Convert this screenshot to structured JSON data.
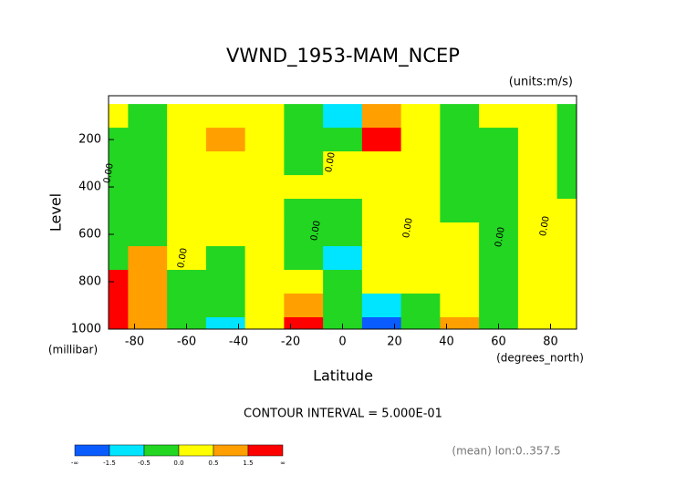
{
  "chart_data": {
    "type": "contour",
    "title": "VWND_1953-MAM_NCEP",
    "units": "(units:m/s)",
    "ylabel": "Level",
    "yunits": "(millibar)",
    "xlabel": "Latitude",
    "xunits": "(degrees_north)",
    "contour_interval": "CONTOUR INTERVAL = 5.000E-01",
    "note": "(mean) lon:0..357.5",
    "contour_labels": [
      "0.00",
      "0.00",
      "0.00",
      "0.00",
      "0.00",
      "0.00",
      "0.00"
    ],
    "x": [
      -90,
      -75,
      -60,
      -45,
      -30,
      -15,
      0,
      15,
      30,
      45,
      60,
      75,
      90
    ],
    "levels_y": [
      100,
      200,
      300,
      400,
      500,
      600,
      700,
      800,
      900,
      1000
    ],
    "z": [
      [
        0.2,
        -0.2,
        0.2,
        0.2,
        0.2,
        -0.2,
        -0.8,
        1.2,
        0.2,
        -0.2,
        0.2,
        0.2,
        -0.2
      ],
      [
        -0.2,
        -0.2,
        0.2,
        0.6,
        0.2,
        -0.2,
        -0.3,
        1.6,
        0.2,
        -0.2,
        -0.2,
        0.2,
        -0.2
      ],
      [
        -0.2,
        -0.2,
        0.2,
        0.2,
        0.2,
        -0.2,
        0.2,
        0.2,
        0.2,
        -0.2,
        -0.2,
        0.2,
        -0.2
      ],
      [
        -0.2,
        -0.2,
        0.2,
        0.2,
        0.2,
        0.2,
        0.2,
        0.2,
        0.2,
        -0.2,
        -0.2,
        0.2,
        -0.2
      ],
      [
        -0.2,
        -0.2,
        0.2,
        0.2,
        0.2,
        -0.2,
        -0.2,
        0.2,
        0.2,
        -0.2,
        -0.2,
        0.2,
        0.2
      ],
      [
        -0.2,
        -0.2,
        0.2,
        0.2,
        0.2,
        -0.2,
        -0.2,
        0.2,
        0.2,
        0.2,
        -0.2,
        0.2,
        0.2
      ],
      [
        -0.2,
        0.8,
        0.2,
        -0.2,
        0.2,
        -0.2,
        -0.7,
        0.2,
        0.2,
        0.2,
        -0.2,
        0.2,
        0.2
      ],
      [
        1.6,
        0.8,
        -0.2,
        -0.2,
        0.2,
        0.2,
        -0.2,
        0.2,
        0.2,
        0.2,
        -0.2,
        0.2,
        0.2
      ],
      [
        1.8,
        0.8,
        -0.2,
        -0.5,
        0.2,
        0.8,
        -0.2,
        -1,
        -0.2,
        0.2,
        -0.2,
        0.2,
        0.2
      ],
      [
        2,
        0.8,
        -0.2,
        -0.7,
        0.2,
        1.7,
        -0.2,
        -1.7,
        -0.2,
        0.6,
        -0.2,
        0.2,
        0.2
      ]
    ],
    "contour_levels": [
      -1.5,
      -0.5,
      0,
      0.5,
      1.5
    ],
    "colors": [
      "#0a5cff",
      "#00e5ff",
      "#22d622",
      "#ffff00",
      "#ff9f00",
      "#ff0000"
    ],
    "colorbar_labels": [
      "-∞",
      "-1.5",
      "-0.5",
      "0.0",
      "0.5",
      "1.5",
      "∞"
    ],
    "xlim": [
      -90,
      90
    ],
    "xticks": [
      -80,
      -60,
      -40,
      -20,
      0,
      20,
      40,
      60,
      80
    ],
    "ylim": [
      1000,
      15
    ],
    "yticks": [
      200,
      400,
      600,
      800,
      1000
    ]
  }
}
